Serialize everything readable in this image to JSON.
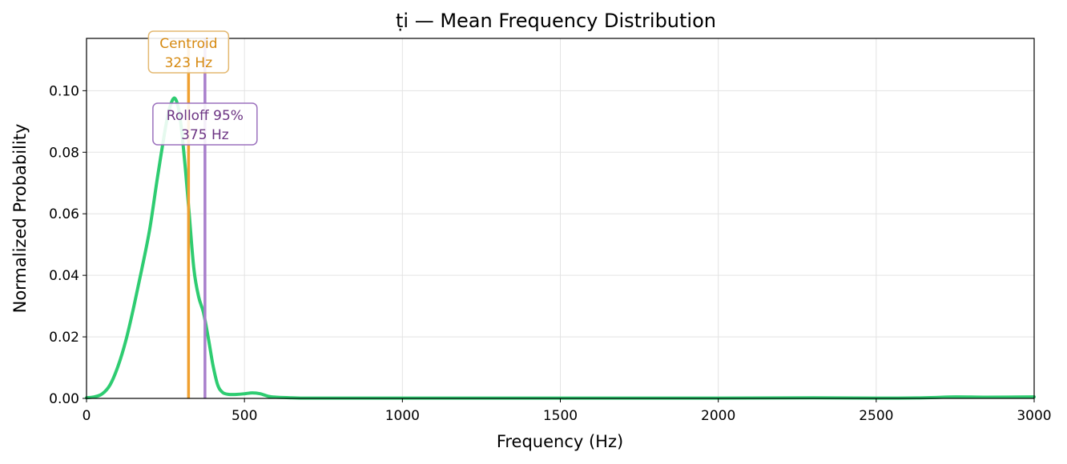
{
  "chart_data": {
    "type": "line",
    "title": "ṭi  —  Mean Frequency Distribution",
    "xlabel": "Frequency (Hz)",
    "ylabel": "Normalized Probability",
    "xlim": [
      0,
      3000
    ],
    "ylim": [
      0,
      0.117
    ],
    "xticks": [
      0,
      500,
      1000,
      1500,
      2000,
      2500,
      3000
    ],
    "xtick_labels": [
      "0",
      "500",
      "1000",
      "1500",
      "2000",
      "2500",
      "3000"
    ],
    "yticks": [
      0,
      0.02,
      0.04,
      0.06,
      0.08,
      0.1
    ],
    "ytick_labels": [
      "0.00",
      "0.02",
      "0.04",
      "0.06",
      "0.08",
      "0.10"
    ],
    "grid": true,
    "series": [
      {
        "color": "#2ecc71",
        "x": [
          0,
          25,
          50,
          75,
          100,
          125,
          150,
          175,
          200,
          225,
          250,
          265,
          280,
          295,
          310,
          325,
          340,
          355,
          370,
          385,
          400,
          415,
          430,
          450,
          475,
          500,
          525,
          550,
          575,
          600,
          650,
          700,
          800,
          1000,
          1500,
          2000,
          2300,
          2500,
          2650,
          2750,
          2850,
          3000
        ],
        "y": [
          0.0002,
          0.0005,
          0.0015,
          0.0045,
          0.0105,
          0.019,
          0.03,
          0.042,
          0.055,
          0.072,
          0.088,
          0.095,
          0.0975,
          0.092,
          0.078,
          0.06,
          0.042,
          0.033,
          0.028,
          0.02,
          0.011,
          0.0045,
          0.002,
          0.0013,
          0.0013,
          0.0015,
          0.0018,
          0.0015,
          0.0007,
          0.0004,
          0.0002,
          0.0001,
          0.0001,
          0.0001,
          0.0001,
          0.0001,
          0.0002,
          0.0001,
          0.0002,
          0.0005,
          0.0004,
          0.0005
        ]
      }
    ],
    "markers": [
      {
        "label": "Centroid",
        "value_label": "323 Hz",
        "x": 323,
        "color": "#f0a030",
        "text_color": "#d68910",
        "box_color": "#e3b870"
      },
      {
        "label": "Rolloff 95%",
        "value_label": "375 Hz",
        "x": 375,
        "color": "#a97fcc",
        "text_color": "#6c3483",
        "box_color": "#9b70bd"
      }
    ]
  }
}
